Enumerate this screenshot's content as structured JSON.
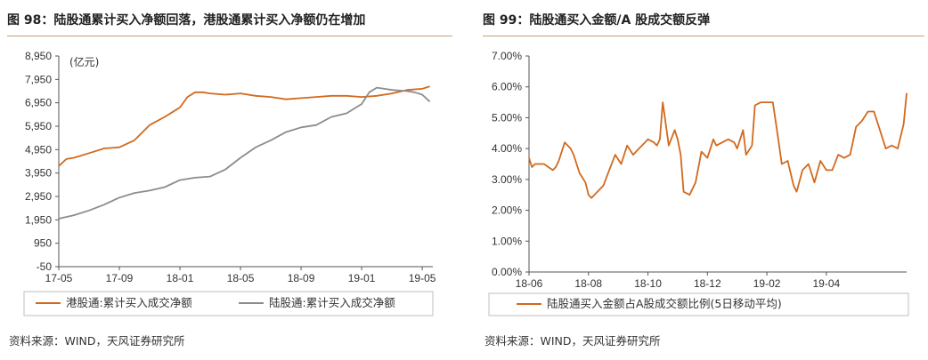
{
  "left": {
    "title": "图 98：陆股通累计买入净额回落，港股通累计买入净额仍在增加",
    "source": "资料来源：WIND，天风证券研究所",
    "unit_label": "(亿元)"
  },
  "right": {
    "title": "图 99：陆股通买入金额/A 股成交额反弹",
    "source": "资料来源：WIND，天风证券研究所"
  },
  "colors": {
    "orange": "#d2691e",
    "gray": "#8c8c8c",
    "accent": "#c9a07a"
  },
  "chart_data": [
    {
      "type": "line",
      "ylim": [
        -50,
        8950
      ],
      "y_ticks": [
        "8,950",
        "7,950",
        "6,950",
        "5,950",
        "4,950",
        "3,950",
        "2,950",
        "1,950",
        "950",
        "-50"
      ],
      "x_ticks": [
        "17-05",
        "17-09",
        "18-01",
        "18-05",
        "18-09",
        "19-01",
        "19-05"
      ],
      "x_tick_months": [
        0,
        4,
        8,
        12,
        16,
        20,
        24
      ],
      "x_range_months": [
        0,
        24.7
      ],
      "series": [
        {
          "name": "港股通:累计买入成交净额",
          "color": "#d2691e",
          "x": [
            0,
            0.5,
            1,
            2,
            3,
            4,
            5,
            6,
            7,
            7.5,
            8,
            8.5,
            9,
            9.5,
            10,
            11,
            12,
            13,
            14,
            15,
            16,
            17,
            18,
            19,
            20,
            21,
            22,
            23,
            24,
            24.5
          ],
          "y": [
            4250,
            4550,
            4600,
            4800,
            5000,
            5050,
            5350,
            6000,
            6350,
            6550,
            6750,
            7200,
            7400,
            7400,
            7350,
            7300,
            7350,
            7250,
            7200,
            7100,
            7150,
            7200,
            7250,
            7250,
            7200,
            7250,
            7350,
            7500,
            7550,
            7650
          ]
        },
        {
          "name": "陆股通:累计买入成交净额",
          "color": "#8c8c8c",
          "x": [
            0,
            1,
            2,
            3,
            4,
            5,
            6,
            7,
            8,
            9,
            10,
            11,
            12,
            13,
            14,
            15,
            16,
            17,
            18,
            19,
            20,
            20.5,
            21,
            21.5,
            22,
            23,
            23.5,
            24,
            24.5
          ],
          "y": [
            2000,
            2150,
            2350,
            2600,
            2900,
            3100,
            3200,
            3350,
            3650,
            3750,
            3800,
            4100,
            4600,
            5050,
            5350,
            5700,
            5900,
            6000,
            6350,
            6500,
            6900,
            7400,
            7600,
            7550,
            7500,
            7450,
            7400,
            7300,
            7000
          ]
        }
      ]
    },
    {
      "type": "line",
      "ylim": [
        0,
        7
      ],
      "y_ticks": [
        "7.00%",
        "6.00%",
        "5.00%",
        "4.00%",
        "3.00%",
        "2.00%",
        "1.00%",
        "0.00%"
      ],
      "x_ticks": [
        "18-06",
        "18-08",
        "18-10",
        "18-12",
        "19-02",
        "19-04"
      ],
      "x_tick_months": [
        0,
        2,
        4,
        6,
        8,
        10
      ],
      "x_range_months": [
        0,
        12.7
      ],
      "series": [
        {
          "name": "陆股通买入金额占A股成交额比例(5日移动平均)",
          "color": "#d2691e",
          "x": [
            0,
            0.1,
            0.2,
            0.5,
            0.8,
            0.9,
            1.0,
            1.2,
            1.4,
            1.5,
            1.7,
            1.9,
            2.0,
            2.1,
            2.3,
            2.5,
            2.7,
            2.9,
            3.1,
            3.3,
            3.5,
            3.7,
            3.9,
            4.0,
            4.2,
            4.3,
            4.4,
            4.5,
            4.7,
            4.9,
            5.0,
            5.1,
            5.2,
            5.4,
            5.6,
            5.8,
            6.0,
            6.2,
            6.3,
            6.5,
            6.7,
            6.9,
            7.0,
            7.2,
            7.3,
            7.5,
            7.6,
            7.8,
            8.0,
            8.2,
            8.4,
            8.5,
            8.7,
            8.9,
            9.0,
            9.2,
            9.4,
            9.6,
            9.8,
            10.0,
            10.2,
            10.4,
            10.6,
            10.8,
            11.0,
            11.2,
            11.4,
            11.6,
            11.8,
            12.0,
            12.2,
            12.4,
            12.6,
            12.7
          ],
          "y": [
            3.7,
            3.4,
            3.5,
            3.5,
            3.3,
            3.4,
            3.6,
            4.2,
            4.0,
            3.8,
            3.2,
            2.9,
            2.5,
            2.4,
            2.6,
            2.8,
            3.3,
            3.8,
            3.5,
            4.1,
            3.8,
            4.0,
            4.2,
            4.3,
            4.2,
            4.1,
            4.3,
            5.5,
            4.1,
            4.6,
            4.3,
            3.8,
            2.6,
            2.5,
            2.9,
            3.9,
            3.7,
            4.3,
            4.1,
            4.2,
            4.3,
            4.2,
            4.0,
            4.6,
            3.8,
            4.1,
            5.4,
            5.5,
            5.5,
            5.5,
            4.2,
            3.5,
            3.6,
            2.8,
            2.6,
            3.3,
            3.5,
            2.9,
            3.6,
            3.3,
            3.3,
            3.8,
            3.7,
            3.8,
            4.7,
            4.9,
            5.2,
            5.2,
            4.6,
            4.0,
            4.1,
            4.0,
            4.8,
            5.8
          ]
        }
      ]
    }
  ]
}
